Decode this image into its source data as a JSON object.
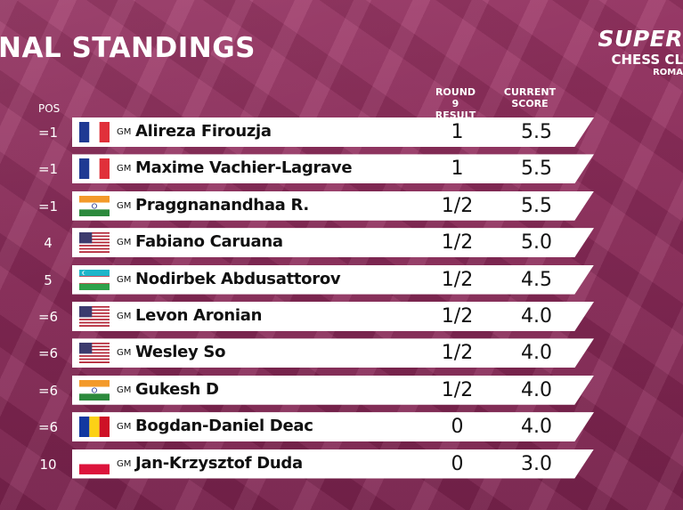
{
  "title": "NAL STANDINGS",
  "logo": {
    "line1": "SUPER",
    "line2": "CHESS CL",
    "line3": "ROMA"
  },
  "headers": {
    "pos": "POS",
    "round": "ROUND 9\nRESULT",
    "score": "CURRENT\nSCORE"
  },
  "standings": [
    {
      "pos": "=1",
      "flag": "france",
      "title": "GM",
      "name": "Alireza Firouzja",
      "result": "1",
      "score": "5.5"
    },
    {
      "pos": "=1",
      "flag": "france",
      "title": "GM",
      "name": "Maxime Vachier-Lagrave",
      "result": "1",
      "score": "5.5"
    },
    {
      "pos": "=1",
      "flag": "india",
      "title": "GM",
      "name": "Praggnanandhaa R.",
      "result": "1/2",
      "score": "5.5"
    },
    {
      "pos": "4",
      "flag": "usa",
      "title": "GM",
      "name": "Fabiano Caruana",
      "result": "1/2",
      "score": "5.0"
    },
    {
      "pos": "5",
      "flag": "uzbekistan",
      "title": "GM",
      "name": "Nodirbek Abdusattorov",
      "result": "1/2",
      "score": "4.5"
    },
    {
      "pos": "=6",
      "flag": "usa",
      "title": "GM",
      "name": "Levon Aronian",
      "result": "1/2",
      "score": "4.0"
    },
    {
      "pos": "=6",
      "flag": "usa",
      "title": "GM",
      "name": "Wesley So",
      "result": "1/2",
      "score": "4.0"
    },
    {
      "pos": "=6",
      "flag": "india",
      "title": "GM",
      "name": "Gukesh D",
      "result": "1/2",
      "score": "4.0"
    },
    {
      "pos": "=6",
      "flag": "romania",
      "title": "GM",
      "name": "Bogdan-Daniel Deac",
      "result": "0",
      "score": "4.0"
    },
    {
      "pos": "10",
      "flag": "poland",
      "title": "GM",
      "name": "Jan-Krzysztof Duda",
      "result": "0",
      "score": "3.0"
    }
  ],
  "colors": {
    "background": "#8a2a57",
    "bar": "#ffffff",
    "text": "#111111"
  }
}
